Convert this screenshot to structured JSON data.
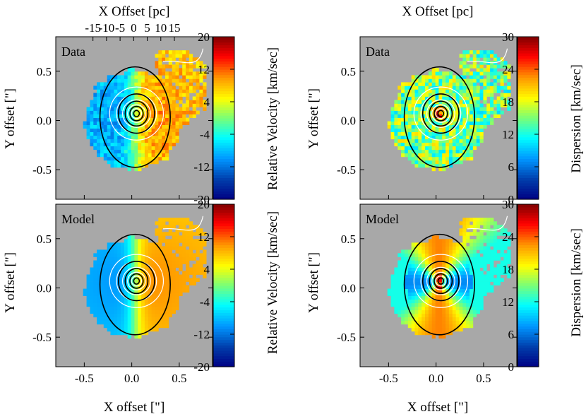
{
  "figure": {
    "top_axis_label": "X Offset [pc]",
    "bottom_axis_label": "X offset [\"]",
    "left_axis_label": "Y offset [\"]",
    "velocity_colorbar_label": "Relative Velocity [km/sec]",
    "dispersion_colorbar_label": "Dispersion [km/sec]"
  },
  "chart_data": [
    {
      "type": "heatmap",
      "panel_label": "Data",
      "quantity": "velocity",
      "xlabel_top": "X Offset [pc]",
      "ylabel": "Y offset [\"]",
      "colorbar_label": "Relative Velocity [km/sec]",
      "colorbar_range": [
        -20,
        20
      ],
      "colorbar_ticks": [
        "-20",
        "-12",
        "-4",
        "4",
        "12",
        "20"
      ],
      "xlim": [
        -0.8,
        0.85
      ],
      "ylim": [
        -0.8,
        0.85
      ],
      "x_ticks_arcsec": [
        "-0.5",
        "0.0",
        "0.5"
      ],
      "x_ticks_pc": [
        "-15",
        "-10",
        "-5",
        "0",
        "5",
        "10",
        "15"
      ],
      "y_ticks": [
        "-0.5",
        "0.0",
        "0.5"
      ],
      "pattern": "rotation field: blue (approaching, ~-8 km/s) to the east/left, red (receding, ~+10 km/s) to the west/right, white and black isophote contours centered near (0.05, 0.07)"
    },
    {
      "type": "heatmap",
      "panel_label": "Data",
      "quantity": "dispersion",
      "xlabel_top": "X Offset [pc]",
      "colorbar_label": "Dispersion [km/sec]",
      "colorbar_range": [
        0,
        30
      ],
      "colorbar_ticks": [
        "0",
        "6",
        "12",
        "18",
        "24",
        "30"
      ],
      "xlim": [
        -0.8,
        0.85
      ],
      "ylim": [
        -0.8,
        0.85
      ],
      "pattern": "noisy map of ~12-20 km/s with central peak ~28 km/s near the nucleus"
    },
    {
      "type": "heatmap",
      "panel_label": "Model",
      "quantity": "velocity",
      "xlabel": "X offset [\"]",
      "ylabel": "Y offset [\"]",
      "colorbar_label": "Relative Velocity [km/sec]",
      "colorbar_range": [
        -20,
        20
      ],
      "colorbar_ticks": [
        "-20",
        "-12",
        "-4",
        "4",
        "12",
        "20"
      ],
      "xlim": [
        -0.8,
        0.85
      ],
      "ylim": [
        -0.8,
        0.85
      ],
      "pattern": "smooth rotating-disk model, strongest gradient near center"
    },
    {
      "type": "heatmap",
      "panel_label": "Model",
      "quantity": "dispersion",
      "xlabel": "X offset [\"]",
      "colorbar_label": "Dispersion [km/sec]",
      "colorbar_range": [
        0,
        30
      ],
      "colorbar_ticks": [
        "0",
        "6",
        "12",
        "18",
        "24",
        "30"
      ],
      "xlim": [
        -0.8,
        0.85
      ],
      "ylim": [
        -0.8,
        0.85
      ],
      "pattern": "bow-tie model: low (~8 km/s) along the horizontal axis, high (~20-24 km/s) along the vertical axis, peak ~30 km/s at nucleus"
    }
  ]
}
